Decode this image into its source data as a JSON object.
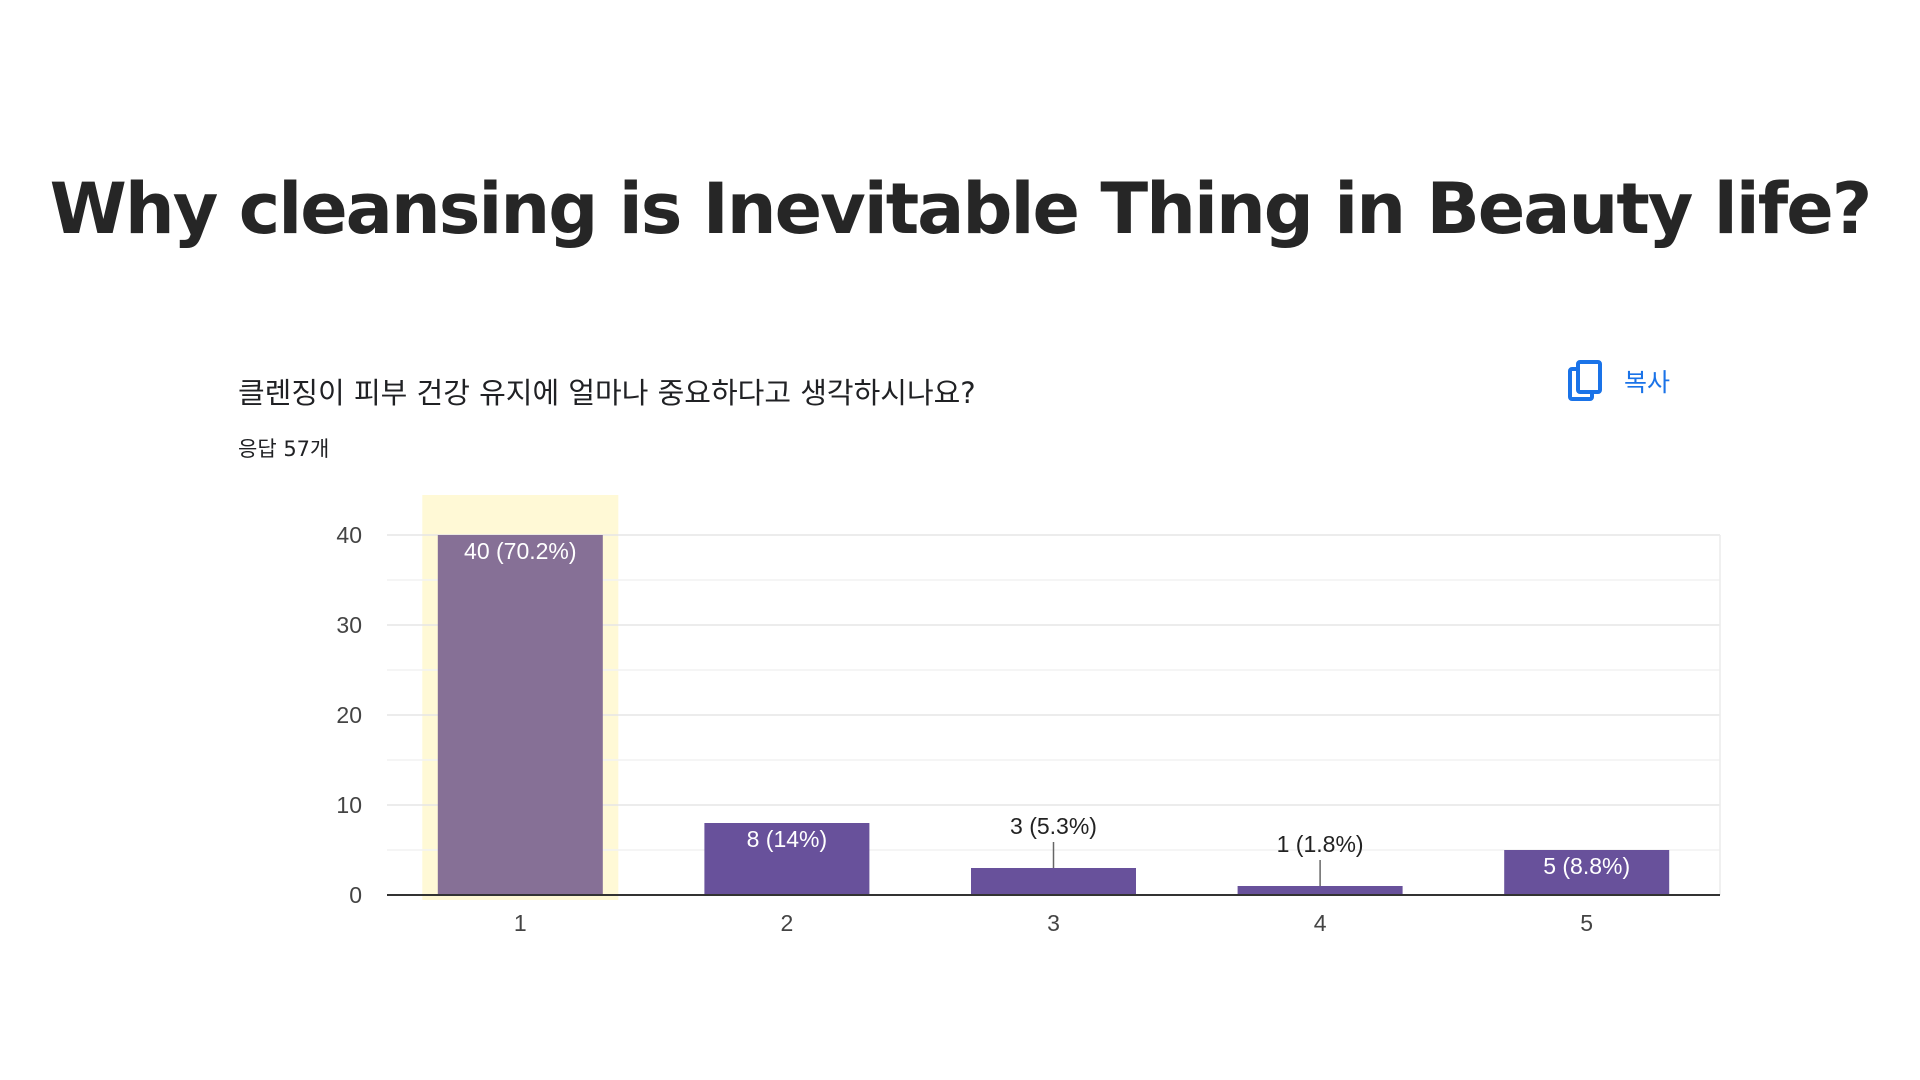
{
  "slide": {
    "title": "Why cleansing is Inevitable Thing in Beauty life?"
  },
  "form_card": {
    "question": "클렌징이 피부 건강 유지에 얼마나 중요하다고 생각하시나요?",
    "responses": "응답 57개",
    "copy_label": "복사",
    "copy_icon": "copy-icon"
  },
  "colors": {
    "bar": "#68519b",
    "bar_highlighted": "#867096",
    "highlight_band": "#fff9d6",
    "copy_accent": "#1a73e8"
  },
  "chart_data": {
    "type": "bar",
    "categories": [
      "1",
      "2",
      "3",
      "4",
      "5"
    ],
    "values": [
      40,
      8,
      3,
      1,
      5
    ],
    "data_labels": [
      "40 (70.2%)",
      "8 (14%)",
      "3 (5.3%)",
      "1 (1.8%)",
      "5 (8.8%)"
    ],
    "highlighted_category": "1",
    "yticks": [
      "0",
      "10",
      "20",
      "30",
      "40"
    ],
    "ylim": [
      0,
      40
    ],
    "grid": true
  }
}
